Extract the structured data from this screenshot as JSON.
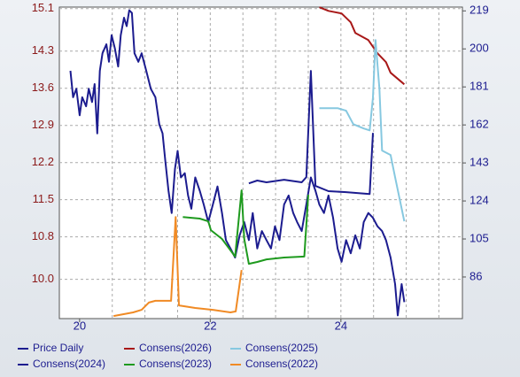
{
  "chart_data": {
    "type": "line",
    "xlim": [
      2019.69,
      2025.86
    ],
    "xticks": [
      {
        "value": 2020,
        "label": "20"
      },
      {
        "value": 2022,
        "label": "22"
      },
      {
        "value": 2024,
        "label": "24"
      }
    ],
    "xgrid": [
      2020.5,
      2021,
      2021.5,
      2022,
      2022.5,
      2023,
      2023.5,
      2024,
      2024.5,
      2025,
      2025.5
    ],
    "ylim": [
      9.26,
      15.13
    ],
    "yticks": [
      15.1,
      14.3,
      13.6,
      12.9,
      12.2,
      11.5,
      10.8,
      {
        "value": 10,
        "label": "10.0"
      }
    ],
    "y2lim": [
      65.2,
      220.9
    ],
    "y2ticks": [
      219,
      200,
      181,
      162,
      143,
      124,
      105,
      86
    ],
    "grid": true,
    "series": [
      {
        "name": "Price Daily",
        "color": "#1c1c8f",
        "axis": "y",
        "x": [
          2019.86,
          2019.9,
          2019.95,
          2020.0,
          2020.04,
          2020.1,
          2020.14,
          2020.19,
          2020.23,
          2020.27,
          2020.31,
          2020.35,
          2020.41,
          2020.45,
          2020.49,
          2020.54,
          2020.59,
          2020.63,
          2020.68,
          2020.72,
          2020.76,
          2020.8,
          2020.84,
          2020.9,
          2020.95,
          2021.02,
          2021.09,
          2021.16,
          2021.22,
          2021.27,
          2021.31,
          2021.36,
          2021.41,
          2021.46,
          2021.5,
          2021.55,
          2021.61,
          2021.66,
          2021.71,
          2021.77,
          2021.84,
          2021.9,
          2021.97,
          2022.04,
          2022.11,
          2022.18,
          2022.24,
          2022.31,
          2022.38,
          2022.45,
          2022.52,
          2022.59,
          2022.65,
          2022.72,
          2022.79,
          2022.86,
          2022.93,
          2022.99,
          2023.06,
          2023.13,
          2023.2,
          2023.27,
          2023.33,
          2023.4,
          2023.47,
          2023.54,
          2023.61,
          2023.67,
          2023.74,
          2023.81,
          2023.88,
          2023.95,
          2024.01,
          2024.08,
          2024.15,
          2024.22,
          2024.29,
          2024.35,
          2024.42,
          2024.49,
          2024.56,
          2024.63,
          2024.69,
          2024.76,
          2024.83,
          2024.87,
          2024.93,
          2024.97
        ],
        "values": [
          13.93,
          13.43,
          13.59,
          13.09,
          13.43,
          13.26,
          13.59,
          13.34,
          13.68,
          12.75,
          13.93,
          14.26,
          14.43,
          14.1,
          14.6,
          14.35,
          14.01,
          14.6,
          14.93,
          14.77,
          15.07,
          15.02,
          14.26,
          14.1,
          14.26,
          13.93,
          13.59,
          13.43,
          12.92,
          12.75,
          12.25,
          11.67,
          11.25,
          12.08,
          12.42,
          11.92,
          12.0,
          11.58,
          11.33,
          11.92,
          11.67,
          11.41,
          11.08,
          11.41,
          11.75,
          11.25,
          10.74,
          10.58,
          10.41,
          10.83,
          11.08,
          10.74,
          11.25,
          10.58,
          10.91,
          10.74,
          10.58,
          11.0,
          10.74,
          11.41,
          11.58,
          11.25,
          11.08,
          10.91,
          11.41,
          11.92,
          11.67,
          11.41,
          11.25,
          11.58,
          11.16,
          10.58,
          10.33,
          10.74,
          10.49,
          10.83,
          10.58,
          11.08,
          11.25,
          11.16,
          11.0,
          10.91,
          10.74,
          10.41,
          9.91,
          9.32,
          9.91,
          9.57
        ]
      },
      {
        "name": "Consens(2026)",
        "color": "#a81818",
        "axis": "y2",
        "x": [
          2023.67,
          2023.81,
          2024.01,
          2024.15,
          2024.22,
          2024.42,
          2024.56,
          2024.69,
          2024.76,
          2024.97
        ],
        "values": [
          220.8,
          219,
          217.7,
          213.3,
          208.0,
          204.4,
          197.8,
          193.4,
          188.1,
          182.3
        ]
      },
      {
        "name": "Consens(2025)",
        "color": "#86c8e0",
        "axis": "y2",
        "x": [
          2023.67,
          2023.95,
          2024.08,
          2024.19,
          2024.35,
          2024.44,
          2024.49,
          2024.53,
          2024.59,
          2024.63,
          2024.76,
          2024.83,
          2024.97
        ],
        "values": [
          170.4,
          170.4,
          169.1,
          162.4,
          160.2,
          159.3,
          175.7,
          204.4,
          180.1,
          149.2,
          147.0,
          135.9,
          113.8
        ]
      },
      {
        "name": "Consens(2024)",
        "color": "#1c1c8f",
        "axis": "y2",
        "x": [
          2022.59,
          2022.72,
          2022.86,
          2023.13,
          2023.4,
          2023.47,
          2023.54,
          2023.61,
          2023.81,
          2024.08,
          2024.44,
          2024.49
        ],
        "values": [
          132.8,
          134.2,
          133.3,
          134.6,
          133.3,
          135.9,
          189.0,
          131.5,
          128.9,
          128.4,
          127.5,
          158.0
        ]
      },
      {
        "name": "Consens(2023)",
        "color": "#1e9a1e",
        "axis": "y2",
        "x": [
          2021.58,
          2021.84,
          2021.97,
          2022.01,
          2022.18,
          2022.38,
          2022.48,
          2022.52,
          2022.59,
          2022.72,
          2022.86,
          2023.13,
          2023.44,
          2023.5
        ],
        "values": [
          116.0,
          115.2,
          113.8,
          109.4,
          105.0,
          96.2,
          129.3,
          105.0,
          92.6,
          93.5,
          94.8,
          95.7,
          96.2,
          127.1
        ]
      },
      {
        "name": "Consens(2022)",
        "color": "#f08a24",
        "axis": "y2",
        "x": [
          2020.52,
          2020.82,
          2020.95,
          2021.06,
          2021.16,
          2021.4,
          2021.47,
          2021.52,
          2021.77,
          2022.04,
          2022.31,
          2022.39,
          2022.48
        ],
        "values": [
          66.5,
          68.3,
          69.6,
          73.2,
          74.1,
          74.1,
          116.0,
          71.8,
          70.5,
          69.6,
          68.3,
          68.8,
          89.5
        ]
      }
    ]
  }
}
